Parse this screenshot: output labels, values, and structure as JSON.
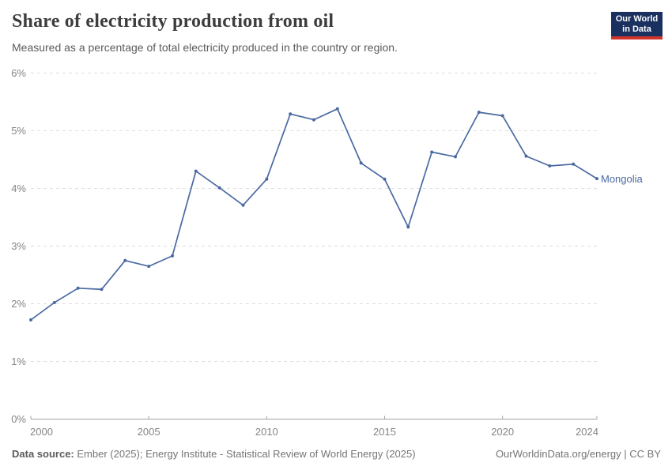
{
  "header": {
    "title": "Share of electricity production from oil",
    "subtitle": "Measured as a percentage of total electricity produced in the country or region.",
    "logo": {
      "line1": "Our World",
      "line2": "in Data"
    }
  },
  "chart_data": {
    "type": "line",
    "title": "Share of electricity production from oil",
    "xlabel": "",
    "ylabel": "",
    "x": [
      2000,
      2001,
      2002,
      2003,
      2004,
      2005,
      2006,
      2007,
      2008,
      2009,
      2010,
      2011,
      2012,
      2013,
      2014,
      2015,
      2016,
      2017,
      2018,
      2019,
      2020,
      2021,
      2022,
      2023,
      2024
    ],
    "series": [
      {
        "name": "Mongolia",
        "values": [
          1.72,
          2.02,
          2.27,
          2.25,
          2.75,
          2.65,
          2.83,
          4.3,
          4.01,
          3.71,
          4.16,
          5.29,
          5.19,
          5.38,
          4.44,
          4.16,
          3.33,
          4.63,
          4.55,
          5.32,
          5.26,
          4.56,
          4.39,
          4.42,
          4.17
        ]
      }
    ],
    "ylim": [
      0,
      6
    ],
    "y_ticks": [
      0,
      1,
      2,
      3,
      4,
      5,
      6
    ],
    "y_tick_labels": [
      "0%",
      "1%",
      "2%",
      "3%",
      "4%",
      "5%",
      "6%"
    ],
    "x_ticks": [
      2000,
      2005,
      2010,
      2015,
      2020,
      2024
    ],
    "grid": "horizontal-dashed",
    "legend_position": "end-of-line-label"
  },
  "footer": {
    "source_label": "Data source:",
    "source_text": " Ember (2025); Energy Institute - Statistical Review of World Energy (2025)",
    "credit": "OurWorldinData.org/energy | CC BY"
  },
  "colors": {
    "line": "#4a69a2",
    "entity_label": "#4a69a2",
    "grid": "#dedede",
    "axis": "#a3a3a3",
    "tick_label": "#858585",
    "title": "#3d3d3d",
    "subtitle": "#5b5b5b",
    "footer_text": "#757575",
    "logo_background": "#1a3160",
    "logo_accent": "#d1342b"
  }
}
